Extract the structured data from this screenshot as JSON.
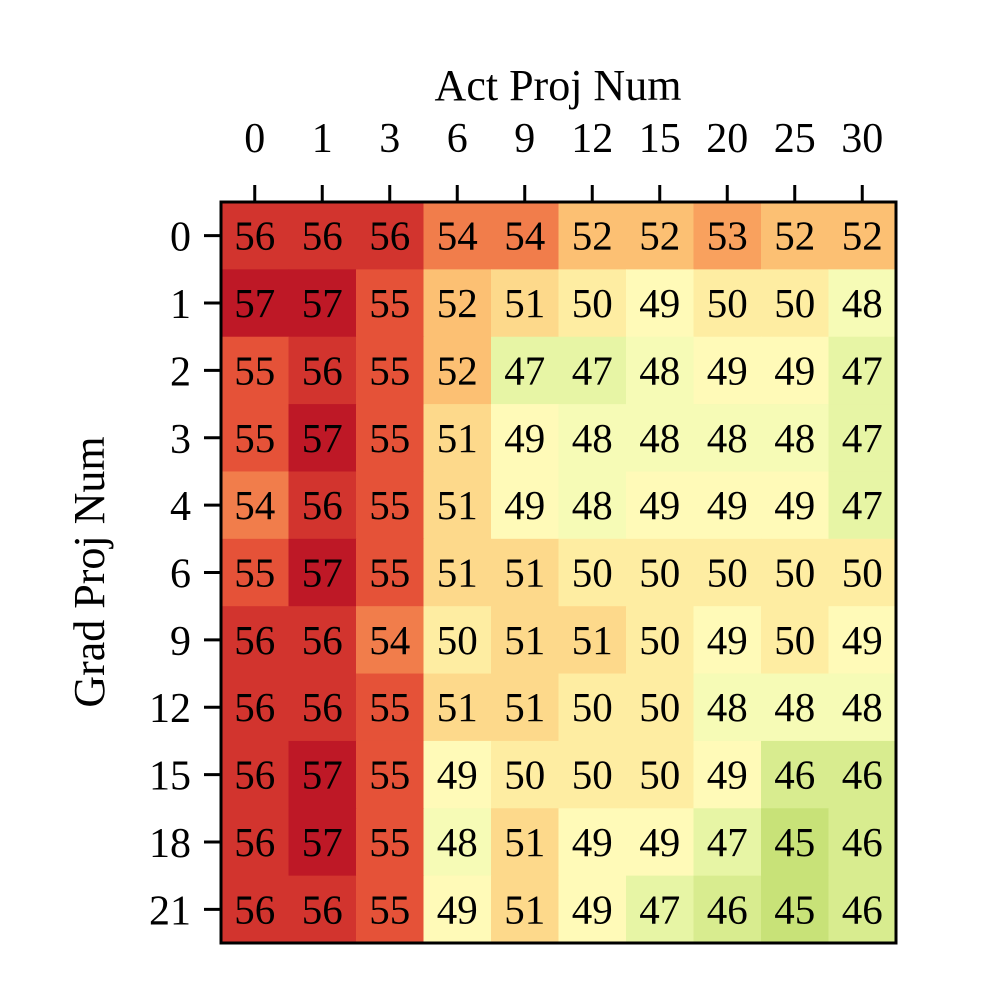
{
  "chart_data": {
    "type": "heatmap",
    "title": "",
    "xlabel": "Act Proj Num",
    "ylabel": "Grad Proj Num",
    "x_categories": [
      "0",
      "1",
      "3",
      "6",
      "9",
      "12",
      "15",
      "20",
      "25",
      "30"
    ],
    "y_categories": [
      "0",
      "1",
      "2",
      "3",
      "4",
      "6",
      "9",
      "12",
      "15",
      "18",
      "21"
    ],
    "values": [
      [
        56,
        56,
        56,
        54,
        54,
        52,
        52,
        53,
        52,
        52
      ],
      [
        57,
        57,
        55,
        52,
        51,
        50,
        49,
        50,
        50,
        48
      ],
      [
        55,
        56,
        55,
        52,
        47,
        47,
        48,
        49,
        49,
        47
      ],
      [
        55,
        57,
        55,
        51,
        49,
        48,
        48,
        48,
        48,
        47
      ],
      [
        54,
        56,
        55,
        51,
        49,
        48,
        49,
        49,
        49,
        47
      ],
      [
        55,
        57,
        55,
        51,
        51,
        50,
        50,
        50,
        50,
        50
      ],
      [
        56,
        56,
        54,
        50,
        51,
        51,
        50,
        49,
        50,
        49
      ],
      [
        56,
        56,
        55,
        51,
        51,
        50,
        50,
        48,
        48,
        48
      ],
      [
        56,
        57,
        55,
        49,
        50,
        50,
        50,
        49,
        46,
        46
      ],
      [
        56,
        57,
        55,
        48,
        51,
        49,
        49,
        47,
        45,
        46
      ],
      [
        56,
        56,
        55,
        49,
        51,
        49,
        47,
        46,
        45,
        46
      ]
    ],
    "colormap": "RdYlGn",
    "x_axis_position": "top",
    "grid": false,
    "legend": "none",
    "annotated": true
  }
}
